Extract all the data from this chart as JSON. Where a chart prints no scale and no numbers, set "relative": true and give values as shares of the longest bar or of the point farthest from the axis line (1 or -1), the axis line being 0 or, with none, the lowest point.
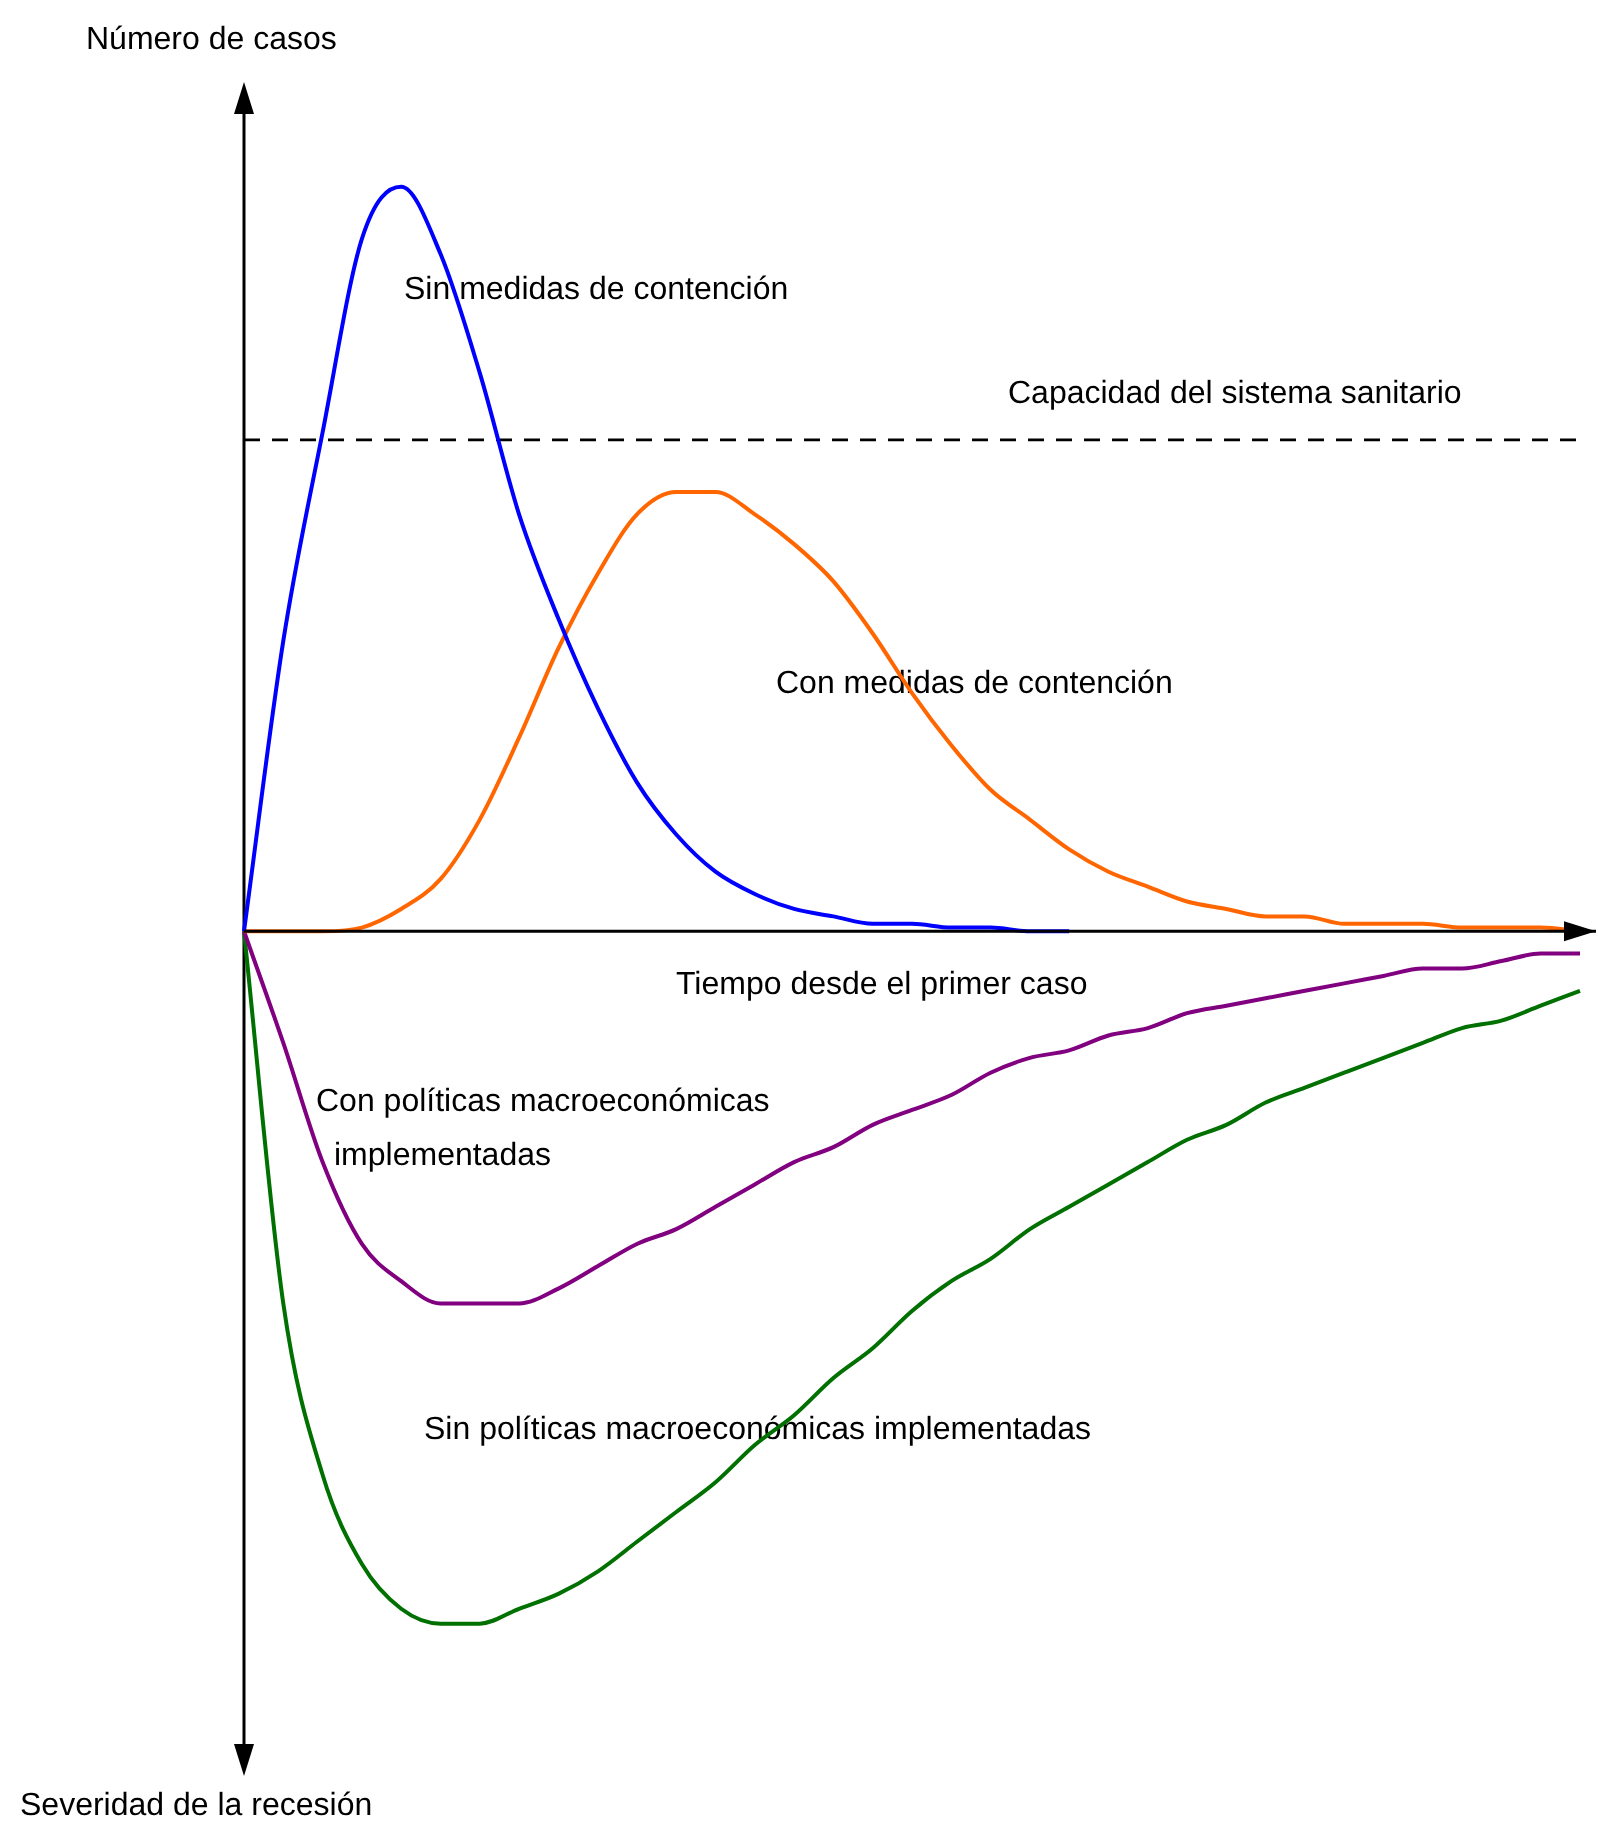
{
  "chart_data": {
    "type": "line",
    "relative": true,
    "ylabel": "Número de casos",
    "xlabel": "Tiempo desde el primer caso",
    "categories": [
      null,
      null,
      null,
      null,
      null,
      null,
      null,
      null,
      null,
      null,
      null,
      null,
      null,
      null,
      null,
      null,
      null,
      null,
      null,
      null,
      null,
      null,
      null,
      null,
      null,
      null,
      null,
      null,
      null,
      null,
      null,
      null,
      null,
      null,
      null
    ],
    "series": [
      {
        "name": "Sin medidas de contención",
        "color": "#0000ff",
        "values": [
          0,
          0.39,
          0.67,
          0.93,
          1,
          0.91,
          0.75,
          0.56,
          0.42,
          0.3,
          0.2,
          0.13,
          0.08,
          0.05,
          0.03,
          0.02,
          0.01,
          0.01,
          0.005,
          0.005,
          0,
          0,
          null,
          null,
          null,
          null,
          null,
          null,
          null,
          null,
          null,
          null,
          null,
          null,
          null
        ]
      },
      {
        "name": "Con medidas de contención",
        "color": "#ff6600",
        "values": [
          0,
          0,
          0,
          0.005,
          0.03,
          0.07,
          0.15,
          0.26,
          0.38,
          0.48,
          0.56,
          0.59,
          0.59,
          0.56,
          0.52,
          0.47,
          0.4,
          0.32,
          0.25,
          0.19,
          0.15,
          0.11,
          0.08,
          0.06,
          0.04,
          0.03,
          0.02,
          0.02,
          0.01,
          0.01,
          0.01,
          0.005,
          0.005,
          0.005,
          0
        ]
      },
      {
        "name": "Con políticas macroeconómicas implementadas",
        "color": "#800080",
        "values": [
          0,
          -0.15,
          -0.31,
          -0.42,
          -0.47,
          -0.5,
          -0.5,
          -0.5,
          -0.48,
          -0.45,
          -0.42,
          -0.4,
          -0.37,
          -0.34,
          -0.31,
          -0.29,
          -0.26,
          -0.24,
          -0.22,
          -0.19,
          -0.17,
          -0.16,
          -0.14,
          -0.13,
          -0.11,
          -0.1,
          -0.09,
          -0.08,
          -0.07,
          -0.06,
          -0.05,
          -0.05,
          -0.04,
          -0.03,
          -0.03
        ]
      },
      {
        "name": "Sin políticas macroeconómicas implementadas",
        "color": "#007000",
        "values": [
          0,
          -0.5,
          -0.73,
          -0.85,
          -0.91,
          -0.93,
          -0.93,
          -0.91,
          -0.89,
          -0.86,
          -0.82,
          -0.78,
          -0.74,
          -0.69,
          -0.65,
          -0.6,
          -0.56,
          -0.51,
          -0.47,
          -0.44,
          -0.4,
          -0.37,
          -0.34,
          -0.31,
          -0.28,
          -0.26,
          -0.23,
          -0.21,
          -0.19,
          -0.17,
          -0.15,
          -0.13,
          -0.12,
          -0.1,
          -0.08
        ]
      }
    ],
    "ref_lines": [
      {
        "axis": "y",
        "value": 0.66,
        "label": "Capacidad del sistema sanitario",
        "color": "#000000",
        "line_style": "dashed"
      }
    ],
    "annotations": [
      "Severidad de la recesión"
    ],
    "legend": false,
    "marker": "none",
    "line_style": "solid"
  }
}
